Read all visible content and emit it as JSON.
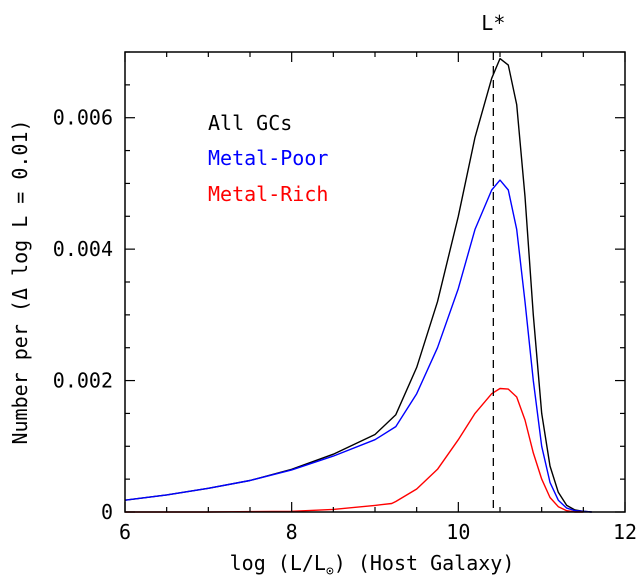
{
  "chart_data": {
    "type": "line",
    "title": "",
    "xlabel": {
      "prefix": "log (L/L",
      "sub": "⊙",
      "suffix": ") (Host Galaxy)"
    },
    "ylabel": "Number per (Δ log L = 0.01)",
    "xlim": [
      6,
      12
    ],
    "ylim": [
      0,
      0.007
    ],
    "x_ticks": [
      6,
      8,
      10,
      12
    ],
    "x_tick_labels": [
      "6",
      "8",
      "10",
      "12"
    ],
    "y_ticks": [
      0,
      0.002,
      0.004,
      0.006
    ],
    "y_tick_labels": [
      "0",
      "0.002",
      "0.004",
      "0.006"
    ],
    "grid": false,
    "legend_position": "top-left",
    "annotations": [
      {
        "text": "L*",
        "x": 10.42,
        "style": "dashed-vertical-line"
      }
    ],
    "series": [
      {
        "name": "All GCs",
        "color": "#000000",
        "x": [
          6.0,
          6.5,
          7.0,
          7.5,
          8.0,
          8.5,
          9.0,
          9.25,
          9.5,
          9.75,
          10.0,
          10.2,
          10.4,
          10.5,
          10.6,
          10.7,
          10.8,
          10.9,
          11.0,
          11.1,
          11.2,
          11.3,
          11.4,
          11.5,
          11.6
        ],
        "y": [
          0.00018,
          0.00026,
          0.00036,
          0.00048,
          0.00065,
          0.00088,
          0.00118,
          0.00148,
          0.0022,
          0.0032,
          0.0045,
          0.0057,
          0.0066,
          0.0069,
          0.0068,
          0.0062,
          0.0048,
          0.003,
          0.0015,
          0.0007,
          0.0003,
          0.0001,
          3e-05,
          1e-05,
          0.0
        ]
      },
      {
        "name": "Metal-Poor",
        "color": "#0000ff",
        "x": [
          6.0,
          6.5,
          7.0,
          7.5,
          8.0,
          8.5,
          9.0,
          9.25,
          9.5,
          9.75,
          10.0,
          10.2,
          10.4,
          10.5,
          10.6,
          10.7,
          10.8,
          10.9,
          11.0,
          11.1,
          11.2,
          11.3,
          11.4,
          11.5,
          11.6
        ],
        "y": [
          0.00018,
          0.00026,
          0.00036,
          0.00048,
          0.00064,
          0.00085,
          0.0011,
          0.0013,
          0.0018,
          0.0025,
          0.0034,
          0.0043,
          0.0049,
          0.00505,
          0.0049,
          0.0043,
          0.0032,
          0.002,
          0.001,
          0.00045,
          0.00018,
          6e-05,
          2e-05,
          1e-05,
          0.0
        ]
      },
      {
        "name": "Metal-Rich",
        "color": "#ff0000",
        "x": [
          6.0,
          7.0,
          8.0,
          8.5,
          9.0,
          9.2,
          9.25,
          9.5,
          9.75,
          10.0,
          10.2,
          10.4,
          10.5,
          10.6,
          10.7,
          10.8,
          10.9,
          11.0,
          11.1,
          11.2,
          11.3,
          11.4,
          11.5
        ],
        "y": [
          0.0,
          0.0,
          1e-05,
          4e-05,
          0.0001,
          0.00013,
          0.00016,
          0.00035,
          0.00065,
          0.0011,
          0.0015,
          0.0018,
          0.00188,
          0.00187,
          0.00175,
          0.0014,
          0.0009,
          0.0005,
          0.00022,
          8e-05,
          2e-05,
          0.0,
          0.0
        ]
      }
    ]
  }
}
